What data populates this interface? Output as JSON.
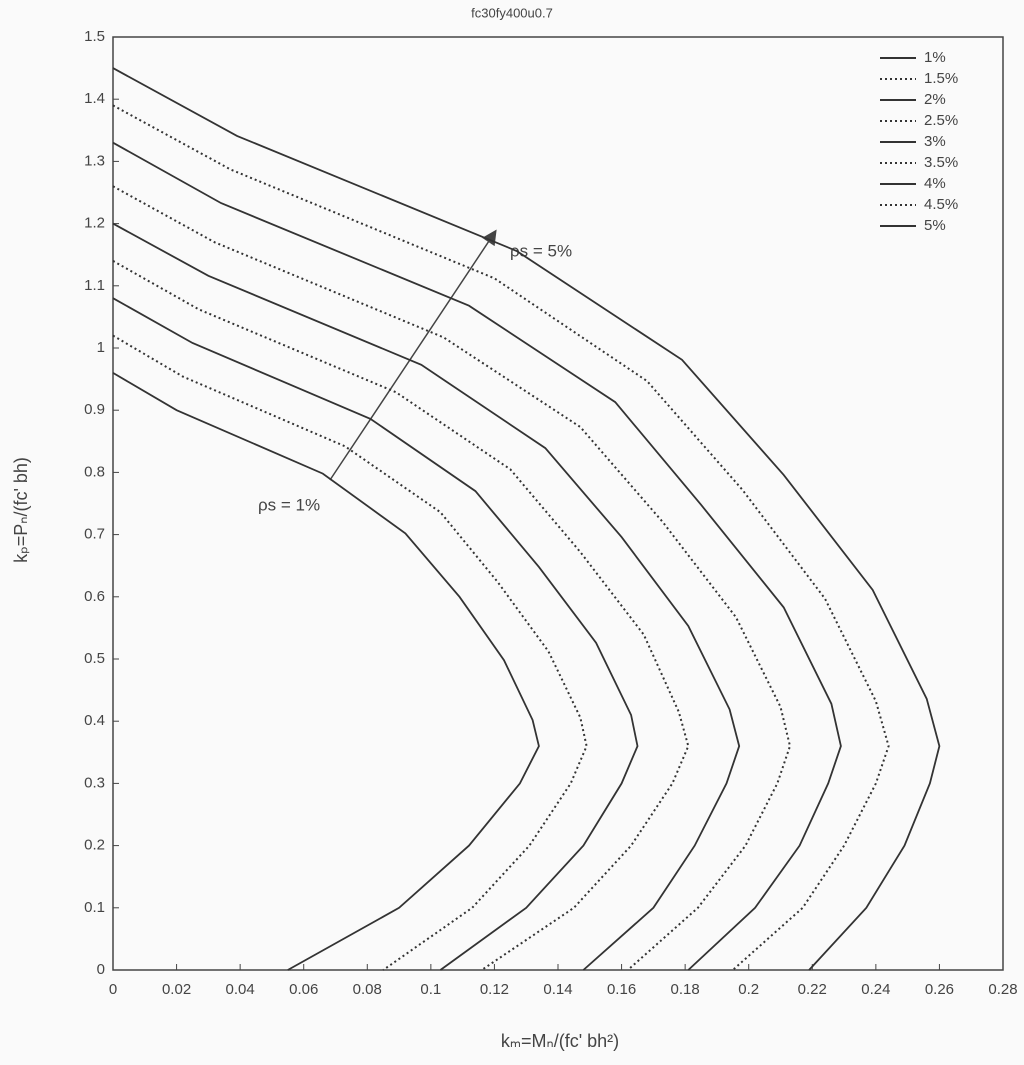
{
  "chart_data": {
    "type": "line",
    "title": "fc30fy400u0.7",
    "x_label": "kₘ=Mₙ/(fc' bh²)",
    "y_label": "kₚ=Pₙ/(fc' bh)",
    "annotations": [
      "ρs = 5%",
      "ρs = 1%"
    ],
    "xlim": [
      0,
      0.28
    ],
    "ylim": [
      0,
      1.5
    ],
    "xticks": [
      0,
      0.02,
      0.04,
      0.06,
      0.08,
      0.1,
      0.12,
      0.14,
      0.16,
      0.18,
      0.2,
      0.22,
      0.24,
      0.26,
      0.28
    ],
    "yticks": [
      0,
      0.1,
      0.2,
      0.3,
      0.4,
      0.5,
      0.6,
      0.7,
      0.8,
      0.9,
      1,
      1.1,
      1.2,
      1.3,
      1.4,
      1.5
    ],
    "grid": false,
    "legend": "upper right",
    "series": [
      {
        "name": "1%",
        "color": "#333333",
        "style": "solid",
        "x": [
          0,
          0.02,
          0.066,
          0.092,
          0.109,
          0.123,
          0.132,
          0.134,
          0.128,
          0.112,
          0.09,
          0.055
        ],
        "values": [
          0.96,
          0.9,
          0.798,
          0.702,
          0.6,
          0.498,
          0.402,
          0.36,
          0.3,
          0.2,
          0.1,
          0
        ]
      },
      {
        "name": "1.5%",
        "color": "#333333",
        "style": "dotted",
        "x": [
          0,
          0.022,
          0.073,
          0.103,
          0.121,
          0.137,
          0.147,
          0.149,
          0.144,
          0.131,
          0.113,
          0.085
        ],
        "values": [
          1.02,
          0.954,
          0.842,
          0.736,
          0.624,
          0.512,
          0.406,
          0.36,
          0.3,
          0.2,
          0.1,
          0
        ]
      },
      {
        "name": "2%",
        "color": "#333333",
        "style": "solid",
        "x": [
          0,
          0.025,
          0.081,
          0.114,
          0.134,
          0.152,
          0.163,
          0.165,
          0.16,
          0.148,
          0.13,
          0.103
        ],
        "values": [
          1.08,
          1.008,
          0.886,
          0.77,
          0.648,
          0.526,
          0.41,
          0.36,
          0.3,
          0.2,
          0.1,
          0
        ]
      },
      {
        "name": "2.5%",
        "color": "#333333",
        "style": "dotted",
        "x": [
          0,
          0.027,
          0.089,
          0.125,
          0.147,
          0.167,
          0.178,
          0.181,
          0.176,
          0.163,
          0.145,
          0.116
        ],
        "values": [
          1.14,
          1.062,
          0.929,
          0.805,
          0.672,
          0.539,
          0.415,
          0.36,
          0.3,
          0.2,
          0.1,
          0
        ]
      },
      {
        "name": "3%",
        "color": "#333333",
        "style": "solid",
        "x": [
          0,
          0.03,
          0.097,
          0.136,
          0.16,
          0.181,
          0.194,
          0.197,
          0.193,
          0.183,
          0.17,
          0.148
        ],
        "values": [
          1.2,
          1.116,
          0.973,
          0.839,
          0.696,
          0.553,
          0.419,
          0.36,
          0.3,
          0.2,
          0.1,
          0
        ]
      },
      {
        "name": "3.5%",
        "color": "#333333",
        "style": "dotted",
        "x": [
          0,
          0.032,
          0.104,
          0.147,
          0.173,
          0.196,
          0.21,
          0.213,
          0.209,
          0.199,
          0.184,
          0.162
        ],
        "values": [
          1.26,
          1.17,
          1.017,
          0.873,
          0.72,
          0.567,
          0.423,
          0.36,
          0.3,
          0.2,
          0.1,
          0
        ]
      },
      {
        "name": "4%",
        "color": "#333333",
        "style": "solid",
        "x": [
          0,
          0.034,
          0.112,
          0.158,
          0.185,
          0.211,
          0.226,
          0.229,
          0.225,
          0.216,
          0.202,
          0.181
        ],
        "values": [
          1.33,
          1.233,
          1.068,
          0.913,
          0.748,
          0.583,
          0.428,
          0.36,
          0.3,
          0.2,
          0.1,
          0
        ]
      },
      {
        "name": "4.5%",
        "color": "#333333",
        "style": "dotted",
        "x": [
          0,
          0.037,
          0.12,
          0.168,
          0.198,
          0.224,
          0.24,
          0.244,
          0.24,
          0.23,
          0.217,
          0.195
        ],
        "values": [
          1.39,
          1.287,
          1.112,
          0.947,
          0.772,
          0.597,
          0.432,
          0.36,
          0.3,
          0.2,
          0.1,
          0
        ]
      },
      {
        "name": "5%",
        "color": "#333333",
        "style": "solid",
        "x": [
          0,
          0.039,
          0.127,
          0.179,
          0.211,
          0.239,
          0.256,
          0.26,
          0.257,
          0.249,
          0.237,
          0.219
        ],
        "values": [
          1.45,
          1.341,
          1.156,
          0.981,
          0.796,
          0.611,
          0.436,
          0.36,
          0.3,
          0.2,
          0.1,
          0
        ]
      }
    ]
  }
}
